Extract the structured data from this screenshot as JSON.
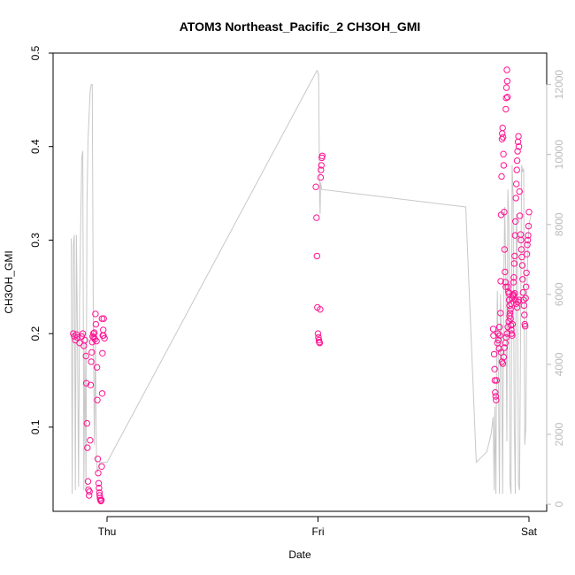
{
  "chart_data": {
    "type": "scatter",
    "title": "ATOM3 Northeast_Pacific_2 CH3OH_GMI",
    "xlabel": "Date",
    "ylabel": "CH3OH_GMI",
    "x_ticks": [
      "Thu",
      "Fri",
      "Sat"
    ],
    "ylim": [
      0.01,
      0.5
    ],
    "y_ticks": [
      "0.1",
      "0.2",
      "0.3",
      "0.4",
      "0.5"
    ],
    "y2lim": [
      -200,
      12900
    ],
    "y2_ticks": [
      "0",
      "2000",
      "4000",
      "6000",
      "8000",
      "10000",
      "12000"
    ],
    "grid": false,
    "colors": {
      "points": "#ff1493",
      "altitude_line": "#c8c8c8",
      "right_axis": "#bbbbbb"
    },
    "points": [
      [
        -0.16,
        0.2
      ],
      [
        -0.155,
        0.197
      ],
      [
        -0.15,
        0.193
      ],
      [
        -0.145,
        0.199
      ],
      [
        -0.14,
        0.196
      ],
      [
        -0.13,
        0.19
      ],
      [
        -0.12,
        0.197
      ],
      [
        -0.115,
        0.2
      ],
      [
        -0.11,
        0.187
      ],
      [
        -0.105,
        0.193
      ],
      [
        -0.1,
        0.176
      ],
      [
        -0.098,
        0.147
      ],
      [
        -0.095,
        0.104
      ],
      [
        -0.093,
        0.078
      ],
      [
        -0.09,
        0.042
      ],
      [
        -0.088,
        0.033
      ],
      [
        -0.085,
        0.027
      ],
      [
        -0.083,
        0.031
      ],
      [
        -0.08,
        0.086
      ],
      [
        -0.078,
        0.145
      ],
      [
        -0.075,
        0.17
      ],
      [
        -0.072,
        0.18
      ],
      [
        -0.07,
        0.191
      ],
      [
        -0.068,
        0.197
      ],
      [
        -0.065,
        0.2
      ],
      [
        -0.062,
        0.196
      ],
      [
        -0.06,
        0.201
      ],
      [
        -0.058,
        0.194
      ],
      [
        -0.055,
        0.221
      ],
      [
        -0.053,
        0.21
      ],
      [
        -0.05,
        0.192
      ],
      [
        -0.048,
        0.164
      ],
      [
        -0.046,
        0.129
      ],
      [
        -0.044,
        0.066
      ],
      [
        -0.042,
        0.051
      ],
      [
        -0.04,
        0.04
      ],
      [
        -0.038,
        0.035
      ],
      [
        -0.036,
        0.03
      ],
      [
        -0.035,
        0.027
      ],
      [
        -0.033,
        0.024
      ],
      [
        -0.031,
        0.022
      ],
      [
        -0.029,
        0.021
      ],
      [
        -0.027,
        0.022
      ],
      [
        -0.025,
        0.058
      ],
      [
        -0.023,
        0.136
      ],
      [
        -0.022,
        0.179
      ],
      [
        -0.02,
        0.198
      ],
      [
        -0.018,
        0.204
      ],
      [
        -0.016,
        0.216
      ],
      [
        -0.024,
        0.216
      ],
      [
        -0.017,
        0.198
      ],
      [
        -0.012,
        0.195
      ],
      [
        0.99,
        0.357
      ],
      [
        0.993,
        0.324
      ],
      [
        0.995,
        0.283
      ],
      [
        0.997,
        0.228
      ],
      [
        1.0,
        0.2
      ],
      [
        1.002,
        0.196
      ],
      [
        1.004,
        0.193
      ],
      [
        1.006,
        0.191
      ],
      [
        1.008,
        0.19
      ],
      [
        1.01,
        0.226
      ],
      [
        1.012,
        0.367
      ],
      [
        1.014,
        0.375
      ],
      [
        1.016,
        0.38
      ],
      [
        1.018,
        0.388
      ],
      [
        1.02,
        0.39
      ],
      [
        1.83,
        0.205
      ],
      [
        1.832,
        0.198
      ],
      [
        1.835,
        0.178
      ],
      [
        1.837,
        0.162
      ],
      [
        1.838,
        0.15
      ],
      [
        1.84,
        0.137
      ],
      [
        1.842,
        0.133
      ],
      [
        1.844,
        0.129
      ],
      [
        1.846,
        0.15
      ],
      [
        1.85,
        0.19
      ],
      [
        1.852,
        0.2
      ],
      [
        1.855,
        0.193
      ],
      [
        1.858,
        0.184
      ],
      [
        1.86,
        0.207
      ],
      [
        1.862,
        0.198
      ],
      [
        1.865,
        0.222
      ],
      [
        1.866,
        0.256
      ],
      [
        1.868,
        0.327
      ],
      [
        1.87,
        0.368
      ],
      [
        1.872,
        0.408
      ],
      [
        1.873,
        0.414
      ],
      [
        1.875,
        0.42
      ],
      [
        1.877,
        0.41
      ],
      [
        1.879,
        0.392
      ],
      [
        1.88,
        0.38
      ],
      [
        1.882,
        0.33
      ],
      [
        1.884,
        0.29
      ],
      [
        1.886,
        0.266
      ],
      [
        1.888,
        0.255
      ],
      [
        1.89,
        0.25
      ],
      [
        1.89,
        0.44
      ],
      [
        1.892,
        0.452
      ],
      [
        1.893,
        0.463
      ],
      [
        1.895,
        0.482
      ],
      [
        1.897,
        0.47
      ],
      [
        1.898,
        0.453
      ],
      [
        1.9,
        0.25
      ],
      [
        1.902,
        0.245
      ],
      [
        1.904,
        0.243
      ],
      [
        1.906,
        0.236
      ],
      [
        1.908,
        0.23
      ],
      [
        1.91,
        0.222
      ],
      [
        1.912,
        0.216
      ],
      [
        1.914,
        0.209
      ],
      [
        1.916,
        0.204
      ],
      [
        1.918,
        0.2
      ],
      [
        1.92,
        0.198
      ],
      [
        1.922,
        0.21
      ],
      [
        1.924,
        0.242
      ],
      [
        1.926,
        0.255
      ],
      [
        1.928,
        0.26
      ],
      [
        1.93,
        0.275
      ],
      [
        1.932,
        0.283
      ],
      [
        1.934,
        0.305
      ],
      [
        1.936,
        0.32
      ],
      [
        1.938,
        0.345
      ],
      [
        1.94,
        0.36
      ],
      [
        1.942,
        0.375
      ],
      [
        1.944,
        0.385
      ],
      [
        1.946,
        0.395
      ],
      [
        1.948,
        0.405
      ],
      [
        1.95,
        0.411
      ],
      [
        1.952,
        0.4
      ],
      [
        1.955,
        0.352
      ],
      [
        1.957,
        0.326
      ],
      [
        1.96,
        0.306
      ],
      [
        1.962,
        0.3
      ],
      [
        1.964,
        0.29
      ],
      [
        1.966,
        0.282
      ],
      [
        1.968,
        0.273
      ],
      [
        1.97,
        0.258
      ],
      [
        1.972,
        0.244
      ],
      [
        1.974,
        0.236
      ],
      [
        1.976,
        0.23
      ],
      [
        1.978,
        0.22
      ],
      [
        1.98,
        0.21
      ],
      [
        1.982,
        0.208
      ],
      [
        1.984,
        0.238
      ],
      [
        1.986,
        0.25
      ],
      [
        1.988,
        0.265
      ],
      [
        1.99,
        0.285
      ],
      [
        1.992,
        0.295
      ],
      [
        1.994,
        0.3
      ],
      [
        1.996,
        0.305
      ],
      [
        1.998,
        0.315
      ],
      [
        2.0,
        0.33
      ],
      [
        1.868,
        0.18
      ],
      [
        1.872,
        0.17
      ],
      [
        1.876,
        0.168
      ],
      [
        1.88,
        0.175
      ],
      [
        1.884,
        0.185
      ],
      [
        1.888,
        0.19
      ],
      [
        1.892,
        0.196
      ],
      [
        1.896,
        0.2
      ],
      [
        1.9,
        0.207
      ],
      [
        1.904,
        0.213
      ],
      [
        1.908,
        0.219
      ],
      [
        1.912,
        0.226
      ],
      [
        1.916,
        0.232
      ],
      [
        1.92,
        0.238
      ],
      [
        1.924,
        0.24
      ],
      [
        1.928,
        0.241
      ],
      [
        1.932,
        0.243
      ],
      [
        1.936,
        0.236
      ],
      [
        1.94,
        0.232
      ],
      [
        1.944,
        0.228
      ],
      [
        1.948,
        0.234
      ],
      [
        1.952,
        0.236
      ]
    ],
    "altitude_line": [
      [
        -0.17,
        7600
      ],
      [
        -0.165,
        300
      ],
      [
        -0.16,
        7400
      ],
      [
        -0.155,
        7700
      ],
      [
        -0.15,
        400
      ],
      [
        -0.145,
        7700
      ],
      [
        -0.14,
        4800
      ],
      [
        -0.135,
        500
      ],
      [
        -0.13,
        5900
      ],
      [
        -0.12,
        9900
      ],
      [
        -0.115,
        10100
      ],
      [
        -0.11,
        400
      ],
      [
        -0.105,
        4600
      ],
      [
        -0.1,
        400
      ],
      [
        -0.095,
        8600
      ],
      [
        -0.09,
        10400
      ],
      [
        -0.085,
        11100
      ],
      [
        -0.08,
        11800
      ],
      [
        -0.075,
        12000
      ],
      [
        -0.07,
        12000
      ],
      [
        -0.065,
        5000
      ],
      [
        -0.06,
        1700
      ],
      [
        -0.055,
        4700
      ],
      [
        -0.05,
        1200
      ],
      [
        -0.045,
        900
      ],
      [
        -0.04,
        1100
      ],
      [
        -0.035,
        1200
      ],
      [
        -0.03,
        1200
      ],
      [
        -0.02,
        1200
      ],
      [
        -0.01,
        1200
      ],
      [
        0.0,
        1200
      ],
      [
        0.995,
        12400
      ],
      [
        0.998,
        12400
      ],
      [
        1.0,
        12300
      ],
      [
        1.003,
        12300
      ],
      [
        1.006,
        10000
      ],
      [
        1.008,
        8700
      ],
      [
        1.01,
        8300
      ],
      [
        1.012,
        9200
      ],
      [
        1.015,
        9100
      ],
      [
        1.018,
        9000
      ],
      [
        1.7,
        8500
      ],
      [
        1.75,
        1200
      ],
      [
        1.8,
        1500
      ],
      [
        1.82,
        2000
      ],
      [
        1.83,
        2500
      ],
      [
        1.835,
        400
      ],
      [
        1.838,
        2800
      ],
      [
        1.84,
        1900
      ],
      [
        1.843,
        300
      ],
      [
        1.846,
        3800
      ],
      [
        1.85,
        6100
      ],
      [
        1.855,
        3700
      ],
      [
        1.86,
        300
      ],
      [
        1.865,
        6000
      ],
      [
        1.87,
        4300
      ],
      [
        1.875,
        300
      ],
      [
        1.88,
        6200
      ],
      [
        1.885,
        8500
      ],
      [
        1.89,
        6400
      ],
      [
        1.895,
        1800
      ],
      [
        1.9,
        9000
      ],
      [
        1.905,
        8000
      ],
      [
        1.91,
        600
      ],
      [
        1.915,
        300
      ],
      [
        1.92,
        9700
      ],
      [
        1.925,
        8800
      ],
      [
        1.93,
        2400
      ],
      [
        1.935,
        300
      ],
      [
        1.94,
        8300
      ],
      [
        1.945,
        7300
      ],
      [
        1.95,
        600
      ],
      [
        1.955,
        400
      ],
      [
        1.96,
        5000
      ],
      [
        1.965,
        9700
      ],
      [
        1.97,
        9500
      ],
      [
        1.975,
        9600
      ],
      [
        1.98,
        1700
      ],
      [
        1.985,
        2200
      ],
      [
        1.99,
        6100
      ],
      [
        1.995,
        7300
      ],
      [
        2.0,
        8000
      ],
      [
        2.01,
        8300
      ]
    ]
  }
}
